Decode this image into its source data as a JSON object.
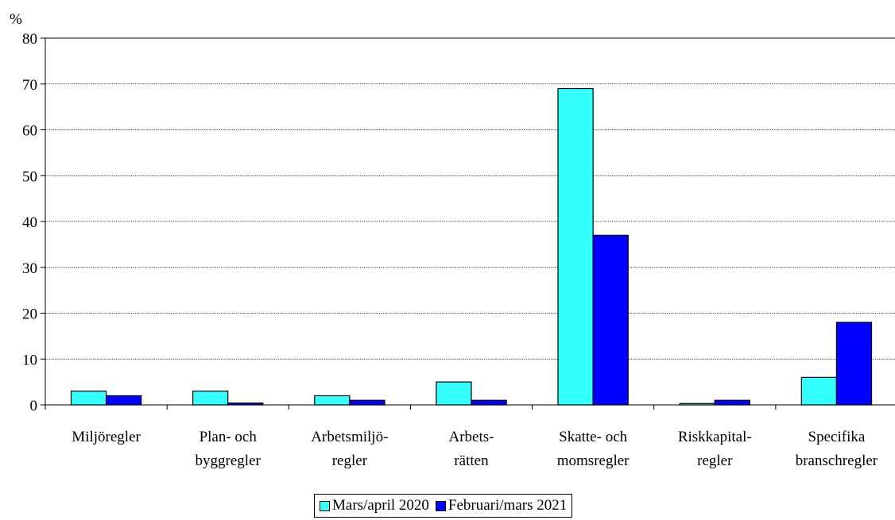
{
  "chart_data": {
    "type": "bar",
    "ylabel": "%",
    "ylim": [
      0,
      80
    ],
    "yticks": [
      0,
      10,
      20,
      30,
      40,
      50,
      60,
      70,
      80
    ],
    "grid": true,
    "legend_position": "bottom",
    "categories": [
      [
        "Miljöregler"
      ],
      [
        "Plan- och",
        "byggregler"
      ],
      [
        "Arbetsmiljö-",
        "regler"
      ],
      [
        "Arbets-",
        "rätten"
      ],
      [
        "Skatte- och",
        "momsregler"
      ],
      [
        "Riskkapital-",
        "regler"
      ],
      [
        "Specifika",
        "branschregler"
      ]
    ],
    "series": [
      {
        "name": "Mars/april 2020",
        "color": "#33FFFF",
        "values": [
          3,
          3,
          2,
          5,
          69,
          0.3,
          6
        ]
      },
      {
        "name": "Februari/mars 2021",
        "color": "#0000FF",
        "values": [
          2,
          0.4,
          1,
          1,
          37,
          1,
          18
        ]
      }
    ]
  }
}
